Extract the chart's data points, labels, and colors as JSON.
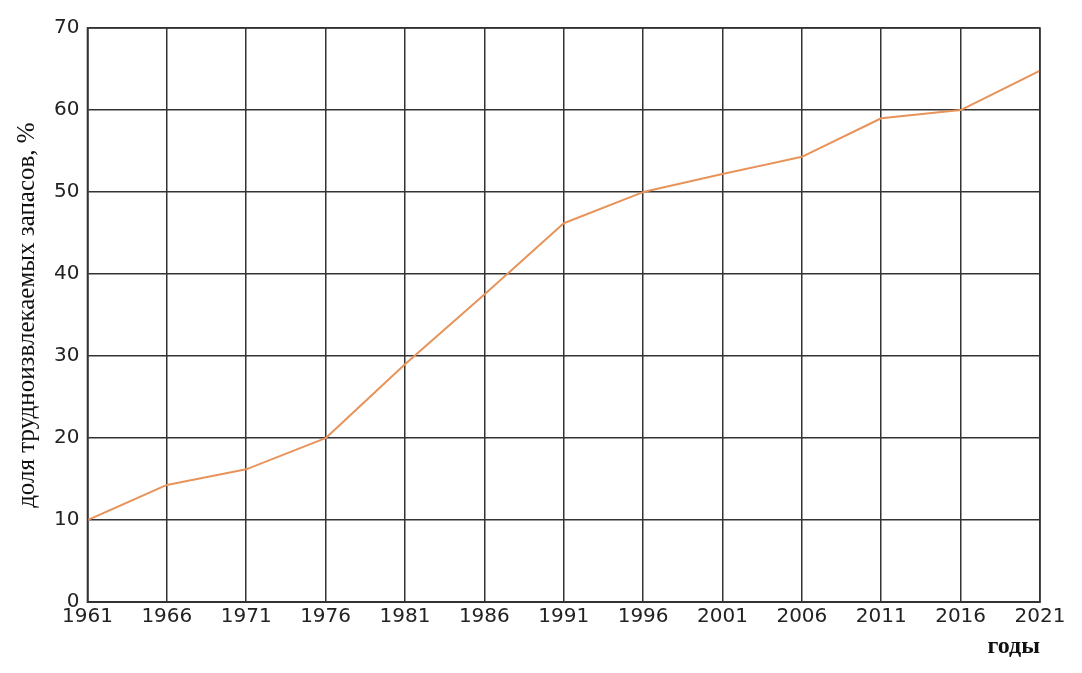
{
  "chart_data": {
    "type": "line",
    "xlabel": "годы",
    "ylabel": "доля трудноизвлекаемых запасов, %",
    "x": [
      1961,
      1966,
      1971,
      1976,
      1981,
      1986,
      1991,
      1996,
      2001,
      2006,
      2011,
      2016,
      2021
    ],
    "series": [
      {
        "color": "#e8935a",
        "values": [
          10,
          14.3,
          16.2,
          20,
          29,
          37.5,
          46.2,
          50,
          52.2,
          54.3,
          59,
          60,
          64.8
        ]
      }
    ],
    "xlim": [
      1961,
      2021
    ],
    "xticks": [
      1961,
      1966,
      1971,
      1976,
      1981,
      1986,
      1991,
      1996,
      2001,
      2006,
      2011,
      2016,
      2021
    ],
    "ylim": [
      0,
      70
    ],
    "yticks": [
      0,
      10,
      20,
      30,
      40,
      50,
      60,
      70
    ],
    "grid": true,
    "legend": false,
    "marker": "none",
    "line_style": "solid"
  }
}
